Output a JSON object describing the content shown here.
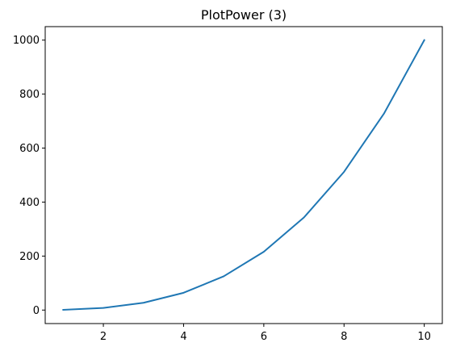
{
  "chart_data": {
    "type": "line",
    "title": "PlotPower (3)",
    "xlabel": "",
    "ylabel": "",
    "xlim": [
      0.55,
      10.45
    ],
    "ylim": [
      -50,
      1050
    ],
    "xticks": [
      2,
      4,
      6,
      8,
      10
    ],
    "xtick_labels": [
      "2",
      "4",
      "6",
      "8",
      "10"
    ],
    "yticks": [
      0,
      200,
      400,
      600,
      800,
      1000
    ],
    "ytick_labels": [
      "0",
      "200",
      "400",
      "600",
      "800",
      "1000"
    ],
    "grid": false,
    "series": [
      {
        "color": "#1f77b4",
        "x": [
          1,
          2,
          3,
          4,
          5,
          6,
          7,
          8,
          9,
          10
        ],
        "y": [
          1,
          8,
          27,
          64,
          125,
          216,
          343,
          512,
          729,
          1000
        ]
      }
    ]
  }
}
